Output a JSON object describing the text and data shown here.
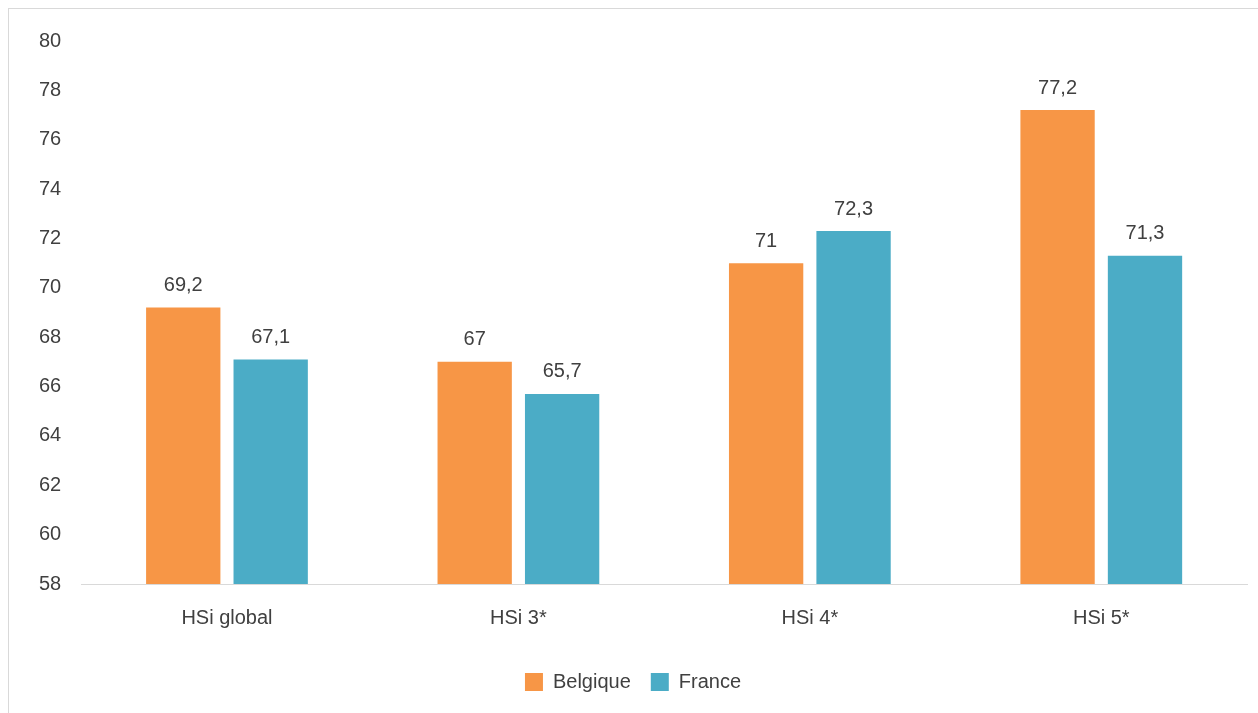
{
  "chart_data": {
    "type": "bar",
    "categories": [
      "HSi global",
      "HSi 3*",
      "HSi 4*",
      "HSi 5*"
    ],
    "series": [
      {
        "name": "Belgique",
        "color": "#f79646",
        "values": [
          69.2,
          67,
          71,
          77.2
        ],
        "value_labels": [
          "69,2",
          "67",
          "71",
          "77,2"
        ]
      },
      {
        "name": "France",
        "color": "#4bacc6",
        "values": [
          67.1,
          65.7,
          72.3,
          71.3
        ],
        "value_labels": [
          "67,1",
          "65,7",
          "72,3",
          "71,3"
        ]
      }
    ],
    "ylim": [
      58,
      80
    ],
    "yticks": [
      58,
      60,
      62,
      64,
      66,
      68,
      70,
      72,
      74,
      76,
      78,
      80
    ],
    "grid": false,
    "legend": "bottom"
  }
}
